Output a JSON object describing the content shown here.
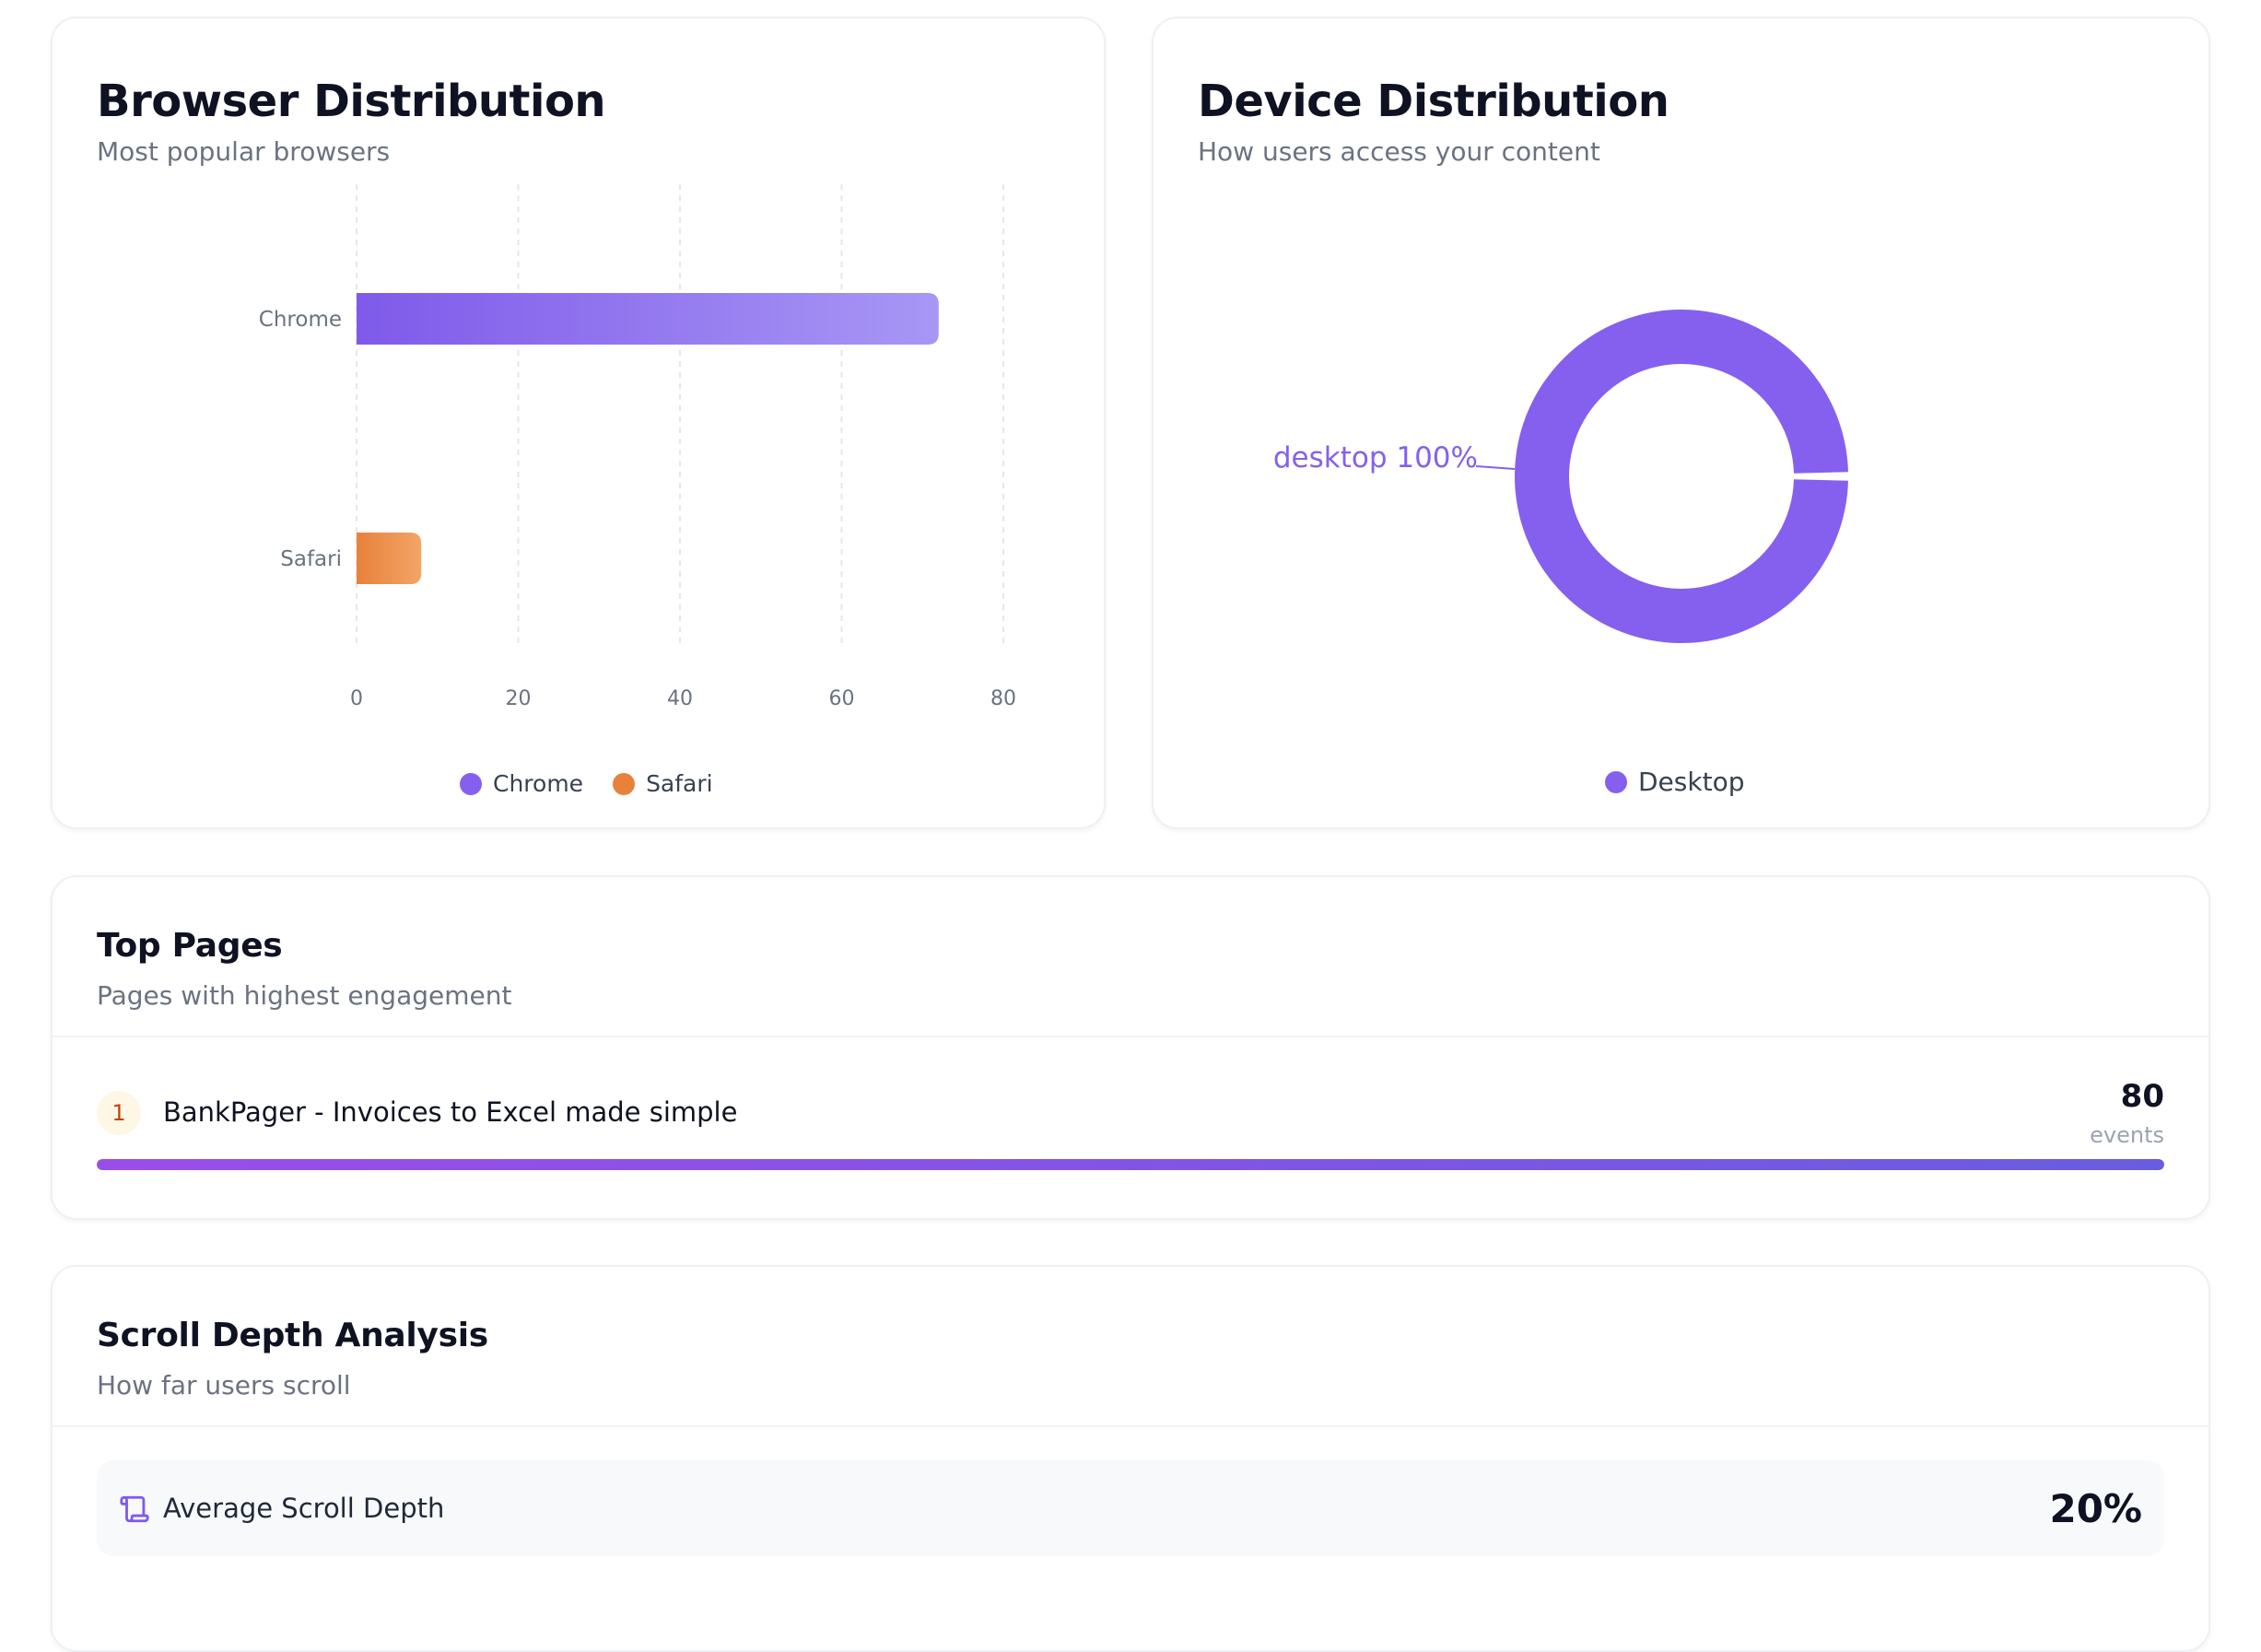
{
  "browser_card": {
    "title": "Browser Distribution",
    "subtitle": "Most popular browsers"
  },
  "device_card": {
    "title": "Device Distribution",
    "subtitle": "How users access your content"
  },
  "top_pages": {
    "title": "Top Pages",
    "subtitle": "Pages with highest engagement",
    "items": [
      {
        "rank": "1",
        "name": "BankPager - Invoices to Excel made simple",
        "count": "80",
        "unit": "events",
        "share": 1.0
      }
    ]
  },
  "scroll_depth": {
    "title": "Scroll Depth Analysis",
    "subtitle": "How far users scroll",
    "metric_label": "Average Scroll Depth",
    "metric_value": "20%",
    "icon": "scroll-icon"
  },
  "colors": {
    "purple": "#8560ee",
    "purple_light": "#a48df6",
    "orange": "#e8813a",
    "orange_light": "#f2a567",
    "accent": "#7c5af0"
  },
  "chart_data": [
    {
      "type": "bar",
      "orientation": "horizontal",
      "categories": [
        "Chrome",
        "Safari"
      ],
      "values": [
        72,
        8
      ],
      "xlim": [
        0,
        80
      ],
      "xticks": [
        "0",
        "20",
        "40",
        "60",
        "80"
      ],
      "grid": "vertical dashed",
      "series": [
        {
          "name": "Chrome",
          "color": "#8560ee"
        },
        {
          "name": "Safari",
          "color": "#e8813a"
        }
      ],
      "legend": [
        "Chrome",
        "Safari"
      ],
      "legend_position": "bottom-center"
    },
    {
      "type": "pie",
      "donut": true,
      "labels": [
        "desktop"
      ],
      "values": [
        100
      ],
      "data_label": "desktop 100%",
      "legend": [
        "Desktop"
      ],
      "legend_position": "bottom-center",
      "color": "#8560ee"
    }
  ]
}
